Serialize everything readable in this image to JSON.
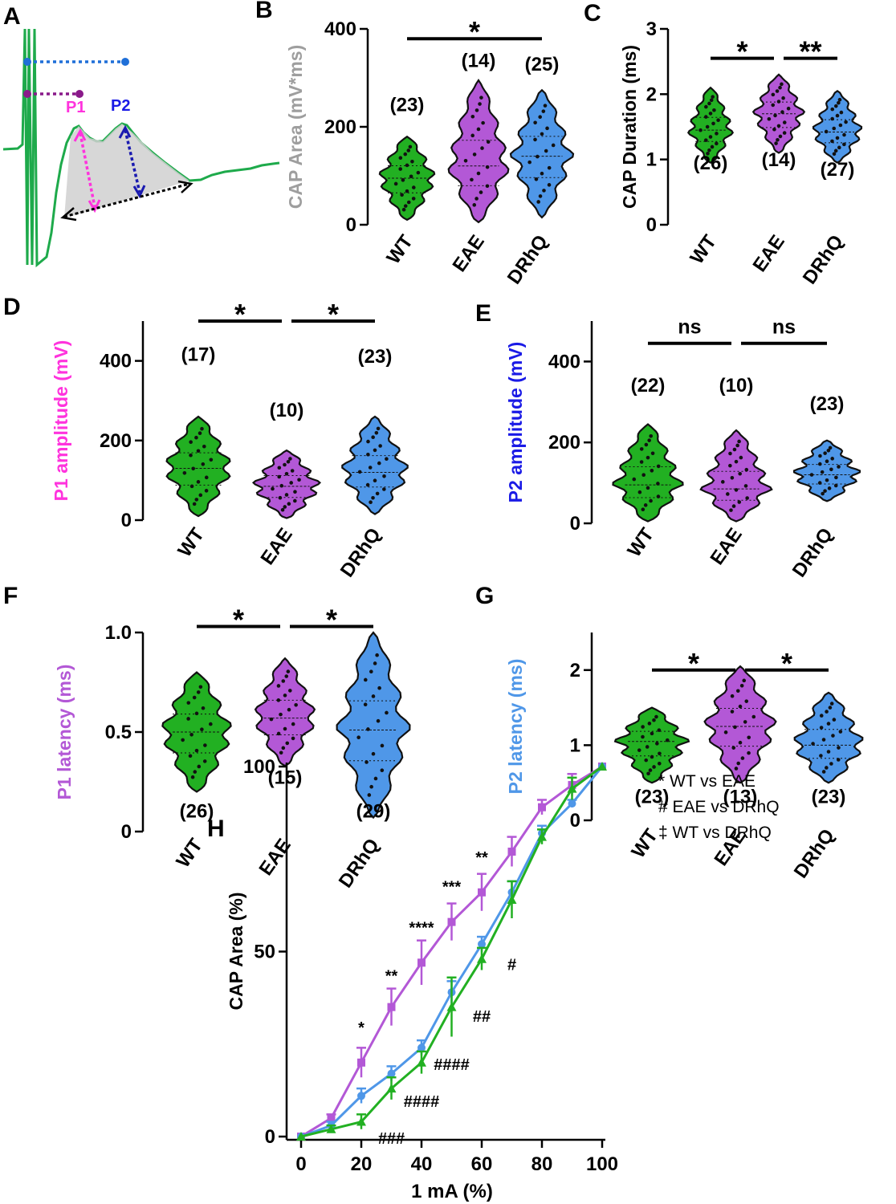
{
  "colors": {
    "wt": "#22b022",
    "eae": "#b358d6",
    "drhq": "#4f97e8",
    "p1": "#ff33dd",
    "p2": "#1a1ae6",
    "area_label": "#9e9e9e",
    "trace": "#1eaa4b"
  },
  "panel_labels": [
    "A",
    "B",
    "C",
    "D",
    "E",
    "F",
    "G",
    "H"
  ],
  "schematic": {
    "p1": "P1",
    "p2": "P2"
  },
  "chart_data": [
    {
      "id": "B",
      "type": "violin",
      "categories": [
        "WT",
        "EAE",
        "DRhQ"
      ],
      "ylabel": "CAP Area (mV*ms)",
      "ylabel_main": "CAP Area",
      "ylabel_unit": " (mV*ms)",
      "ylim": [
        0,
        400
      ],
      "yticks": [
        0,
        200,
        400
      ],
      "n": [
        "(23)",
        "(14)",
        "(25)"
      ],
      "n_y": [
        232,
        322,
        315
      ],
      "medians": [
        95,
        120,
        140
      ],
      "ranges": [
        [
          10,
          180
        ],
        [
          5,
          295
        ],
        [
          15,
          275
        ]
      ],
      "sig": [
        {
          "from": 0,
          "to": 2,
          "label": "*",
          "y": 380
        }
      ]
    },
    {
      "id": "C",
      "type": "violin",
      "categories": [
        "WT",
        "EAE",
        "DRhQ"
      ],
      "ylabel": "CAP Duration (ms)",
      "ylim": [
        0,
        3
      ],
      "yticks": [
        0,
        1,
        2,
        3
      ],
      "n": [
        "(26)",
        "(14)",
        "(27)"
      ],
      "n_y": [
        0.85,
        0.9,
        0.75
      ],
      "medians": [
        1.45,
        1.7,
        1.42
      ],
      "ranges": [
        [
          0.95,
          2.1
        ],
        [
          1.1,
          2.3
        ],
        [
          0.95,
          2.05
        ]
      ],
      "sig": [
        {
          "from": 0,
          "to": 1,
          "label": "*",
          "y": 2.55
        },
        {
          "from": 1,
          "to": 2,
          "label": "**",
          "y": 2.55
        }
      ]
    },
    {
      "id": "D",
      "type": "violin",
      "categories": [
        "WT",
        "EAE",
        "DRhQ"
      ],
      "ylabel": "P1 amplitude (mV)",
      "ylim": [
        0,
        500
      ],
      "yticks": [
        0,
        200,
        400
      ],
      "n": [
        "(17)",
        "(10)",
        "(23)"
      ],
      "n_y": [
        400,
        260,
        395
      ],
      "medians": [
        130,
        85,
        120
      ],
      "ranges": [
        [
          10,
          260
        ],
        [
          5,
          175
        ],
        [
          15,
          260
        ]
      ],
      "sig": [
        {
          "from": 0,
          "to": 1,
          "label": "*",
          "y": 500
        },
        {
          "from": 1,
          "to": 2,
          "label": "*",
          "y": 500
        }
      ]
    },
    {
      "id": "E",
      "type": "violin",
      "categories": [
        "WT",
        "EAE",
        "DRhQ"
      ],
      "ylabel": "P2 amplitude (mV)",
      "ylim": [
        0,
        500
      ],
      "yticks": [
        0,
        200,
        400
      ],
      "n": [
        "(22)",
        "(10)",
        "(23)"
      ],
      "n_y": [
        325,
        325,
        280
      ],
      "medians": [
        95,
        85,
        120
      ],
      "ranges": [
        [
          5,
          245
        ],
        [
          5,
          230
        ],
        [
          55,
          205
        ]
      ],
      "sig": [
        {
          "from": 0,
          "to": 1,
          "label": "ns",
          "y": 445
        },
        {
          "from": 1,
          "to": 2,
          "label": "ns",
          "y": 445
        }
      ]
    },
    {
      "id": "F",
      "type": "violin",
      "categories": [
        "WT",
        "EAE",
        "DRhQ"
      ],
      "ylabel": "P1 latency (ms)",
      "ylim": [
        0,
        1.0
      ],
      "yticks": [
        0,
        0.5,
        1.0
      ],
      "yticklabels": [
        "0",
        "0.5",
        "1.0"
      ],
      "n": [
        "(26)",
        "(15)",
        "(29)"
      ],
      "n_y": [
        0.07,
        0.24,
        0.07
      ],
      "medians": [
        0.5,
        0.57,
        0.51
      ],
      "ranges": [
        [
          0.2,
          0.8
        ],
        [
          0.33,
          0.87
        ],
        [
          0.07,
          1.0
        ]
      ],
      "sig": [
        {
          "from": 0,
          "to": 1,
          "label": "*",
          "y": 1.03
        },
        {
          "from": 1,
          "to": 2,
          "label": "*",
          "y": 1.03
        }
      ]
    },
    {
      "id": "G",
      "type": "violin",
      "categories": [
        "WT",
        "EAE",
        "DRhQ"
      ],
      "ylabel": "P2 latency (ms)",
      "ylim": [
        0,
        2.5
      ],
      "yticks": [
        0,
        1,
        2
      ],
      "n": [
        "(23)",
        "(13)",
        "(23)"
      ],
      "n_y": [
        0.23,
        0.23,
        0.23
      ],
      "medians": [
        1.05,
        1.25,
        1.0
      ],
      "ranges": [
        [
          0.5,
          1.5
        ],
        [
          0.5,
          2.05
        ],
        [
          0.5,
          1.7
        ]
      ],
      "sig": [
        {
          "from": 0,
          "to": 1,
          "label": "*",
          "y": 2.0
        },
        {
          "from": 1,
          "to": 2,
          "label": "*",
          "y": 2.0
        }
      ]
    },
    {
      "id": "H",
      "type": "line",
      "xlabel": "1 mA (%)",
      "ylabel": "CAP Area (%)",
      "x": [
        0,
        10,
        20,
        30,
        40,
        50,
        60,
        70,
        80,
        90,
        100
      ],
      "xlim": [
        0,
        100
      ],
      "xticks": [
        0,
        20,
        40,
        60,
        80,
        100
      ],
      "ylim": [
        0,
        100
      ],
      "yticks": [
        0,
        50,
        100
      ],
      "series": [
        {
          "name": "EAE",
          "values": [
            0,
            5,
            20,
            35,
            47,
            58,
            66,
            77,
            89,
            95,
            100
          ],
          "errors": [
            0,
            1,
            4,
            5,
            6,
            5,
            5,
            4,
            2,
            3,
            0
          ]
        },
        {
          "name": "DRhQ",
          "values": [
            0,
            3,
            11,
            17,
            24,
            39,
            52,
            66,
            82,
            90,
            100
          ],
          "errors": [
            0,
            1,
            2,
            2,
            2,
            3,
            2,
            3,
            2,
            1,
            0
          ]
        },
        {
          "name": "WT",
          "values": [
            0,
            2,
            4,
            13,
            20,
            35,
            48,
            64,
            81,
            94,
            100
          ],
          "errors": [
            0,
            1,
            2,
            3,
            3,
            8,
            3,
            5,
            2,
            3,
            0
          ]
        }
      ],
      "annotations": [
        {
          "text": "*",
          "x": 20,
          "y": 28
        },
        {
          "text": "**",
          "x": 30,
          "y": 42
        },
        {
          "text": "****",
          "x": 40,
          "y": 55
        },
        {
          "text": "***",
          "x": 50,
          "y": 66
        },
        {
          "text": "**",
          "x": 60,
          "y": 74
        },
        {
          "text": "#",
          "x": 70,
          "y": 45
        },
        {
          "text": "##",
          "x": 60,
          "y": 31
        },
        {
          "text": "####",
          "x": 50,
          "y": 18
        },
        {
          "text": "####",
          "x": 40,
          "y": 8
        },
        {
          "text": "###",
          "x": 30,
          "y": -2
        }
      ],
      "legend": [
        "* WT vs EAE",
        "# EAE vs DRhQ",
        "‡ WT vs DRhQ"
      ]
    }
  ]
}
